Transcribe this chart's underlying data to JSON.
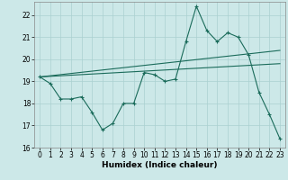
{
  "xlabel": "Humidex (Indice chaleur)",
  "bg_color": "#cce8e8",
  "line_color": "#1a6b5a",
  "grid_color": "#aad0d0",
  "xlim": [
    -0.5,
    23.5
  ],
  "ylim": [
    16,
    22.6
  ],
  "yticks": [
    16,
    17,
    18,
    19,
    20,
    21,
    22
  ],
  "xticks": [
    0,
    1,
    2,
    3,
    4,
    5,
    6,
    7,
    8,
    9,
    10,
    11,
    12,
    13,
    14,
    15,
    16,
    17,
    18,
    19,
    20,
    21,
    22,
    23
  ],
  "series1_x": [
    0,
    1,
    2,
    3,
    4,
    5,
    6,
    7,
    8,
    9,
    10,
    11,
    12,
    13,
    14,
    15,
    16,
    17,
    18,
    19,
    20,
    21,
    22,
    23
  ],
  "series1_y": [
    19.2,
    18.9,
    18.2,
    18.2,
    18.3,
    17.6,
    16.8,
    17.1,
    18.0,
    18.0,
    19.4,
    19.3,
    19.0,
    19.1,
    20.8,
    22.4,
    21.3,
    20.8,
    21.2,
    21.0,
    20.2,
    18.5,
    17.5,
    16.4
  ],
  "series2_x": [
    0,
    23
  ],
  "series2_y": [
    19.2,
    20.4
  ],
  "series3_x": [
    0,
    23
  ],
  "series3_y": [
    19.2,
    19.8
  ],
  "tick_fontsize": 5.5,
  "label_fontsize": 6.5
}
